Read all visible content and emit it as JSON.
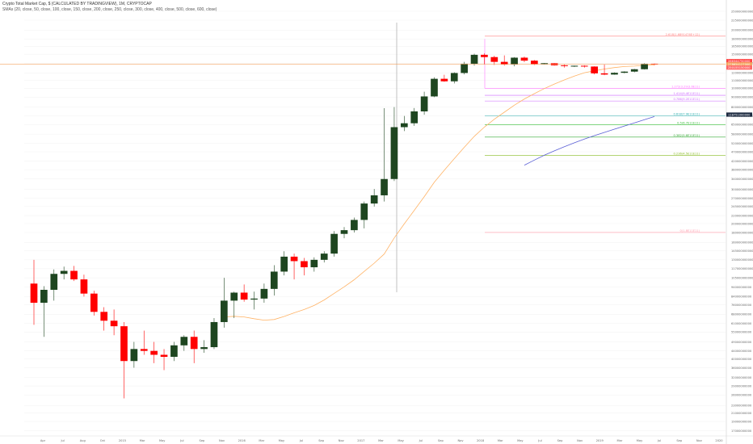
{
  "header": {
    "title": "Crypto Total Market Cap, $ (CALCULATED BY TRADINGVIEW), 1M, CRYPTOCAP",
    "indicators": "SMAs (20, close, 50, close, 100, close, 150, close, 200, close, 250, close, 300, close, 400, close, 500, close, 600, close)"
  },
  "colors": {
    "up": "#1e4620",
    "down": "#ff0000",
    "sma_orange": "#ffb366",
    "sma_blue": "#5a5fd6",
    "fib_lines": [
      "#ff8080",
      "#ff77ff",
      "#cc66ff",
      "#cc66ff",
      "#22aaaa",
      "#33bb33",
      "#33aa33",
      "#88bb22",
      "#ff99aa",
      "#ff4444"
    ],
    "price_line": "#f4a460",
    "vline": "#999999"
  },
  "chart_data": {
    "type": "candlestick",
    "y_scale": "price axis: 0 at 1,000,000,000 tick spacing ~ as printed",
    "y_ticks": [
      "2500000000000",
      "2250000000000",
      "2000000000000",
      "1800000000000",
      "1650000000000",
      "1500000000000",
      "1350000000000",
      "1200000000000",
      "1100000000000",
      "1000000000000",
      "900000000000",
      "800000000000",
      "720000000000",
      "650000000000",
      "580000000000",
      "520000000000",
      "470000000000",
      "420000000000",
      "380000000000",
      "340000000000",
      "300000000000",
      "270000000000",
      "245000000000",
      "220000000000",
      "200000000000",
      "180000000000",
      "160000000000",
      "145000000000",
      "130000000000",
      "117000000000",
      "105000000000",
      "94000000000",
      "84000000000",
      "76000000000",
      "68000000000",
      "61000000000",
      "55000000000",
      "49000000000",
      "44000000000",
      "40000000000",
      "36000000000",
      "32000000000",
      "29000000000",
      "26000000000",
      "23000000000",
      "21000000000",
      "19000000000",
      "17000000000",
      "15500000000",
      "14000000000",
      "12500000000",
      "11000000000",
      "10000000000",
      "9000000000",
      "8000000000",
      "7200000000",
      "6500000000",
      "5800000000",
      "5200000000",
      "4700000000",
      "4200000000",
      "3800000000",
      "3400000000",
      "3000000000",
      "2700000000",
      "2400000000",
      "2200000000",
      "2000000000",
      "1800000000",
      "1600000000"
    ],
    "x_labels": [
      "Apr",
      "Jul",
      "Aug",
      "Oct",
      "2015",
      "Mar",
      "May",
      "Jul",
      "Sep",
      "Nov",
      "2016",
      "Mar",
      "May",
      "Jul",
      "Sep",
      "Nov",
      "2017",
      "Mar",
      "May",
      "Jul",
      "Sep",
      "Nov",
      "2018",
      "Mar",
      "May",
      "Jul",
      "Sep",
      "Nov",
      "2019",
      "Mar",
      "May",
      "Jul",
      "Sep",
      "Nov",
      "2020"
    ],
    "candles": [
      {
        "o": 9.8,
        "h": 13.0,
        "l": 6.0,
        "c": 7.8
      },
      {
        "o": 7.8,
        "h": 9.5,
        "l": 5.2,
        "c": 9.1
      },
      {
        "o": 9.1,
        "h": 11.6,
        "l": 8.0,
        "c": 11.0
      },
      {
        "o": 11.0,
        "h": 12.0,
        "l": 10.3,
        "c": 11.4
      },
      {
        "o": 11.4,
        "h": 12.1,
        "l": 10.1,
        "c": 10.3
      },
      {
        "o": 10.3,
        "h": 10.9,
        "l": 8.4,
        "c": 8.7
      },
      {
        "o": 8.7,
        "h": 9.0,
        "l": 6.7,
        "c": 7.0
      },
      {
        "o": 7.0,
        "h": 7.4,
        "l": 5.6,
        "c": 6.3
      },
      {
        "o": 6.3,
        "h": 7.2,
        "l": 5.3,
        "c": 5.9
      },
      {
        "o": 5.9,
        "h": 6.2,
        "l": 2.5,
        "c": 3.9
      },
      {
        "o": 3.9,
        "h": 4.9,
        "l": 3.6,
        "c": 4.5
      },
      {
        "o": 4.5,
        "h": 5.6,
        "l": 4.2,
        "c": 4.4
      },
      {
        "o": 4.4,
        "h": 4.9,
        "l": 3.8,
        "c": 4.2
      },
      {
        "o": 4.2,
        "h": 4.5,
        "l": 3.5,
        "c": 4.1
      },
      {
        "o": 4.1,
        "h": 4.9,
        "l": 3.9,
        "c": 4.7
      },
      {
        "o": 4.7,
        "h": 5.3,
        "l": 4.4,
        "c": 5.2
      },
      {
        "o": 5.2,
        "h": 5.6,
        "l": 3.8,
        "c": 4.5
      },
      {
        "o": 4.5,
        "h": 5.0,
        "l": 4.3,
        "c": 4.6
      },
      {
        "o": 4.6,
        "h": 6.5,
        "l": 4.5,
        "c": 6.2
      },
      {
        "o": 6.2,
        "h": 10.5,
        "l": 5.8,
        "c": 8.0
      },
      {
        "o": 8.0,
        "h": 8.9,
        "l": 6.5,
        "c": 8.8
      },
      {
        "o": 8.8,
        "h": 9.7,
        "l": 7.9,
        "c": 8.1
      },
      {
        "o": 8.1,
        "h": 8.9,
        "l": 7.2,
        "c": 8.2
      },
      {
        "o": 8.2,
        "h": 9.8,
        "l": 7.8,
        "c": 9.2
      },
      {
        "o": 9.2,
        "h": 12.2,
        "l": 8.5,
        "c": 11.3
      },
      {
        "o": 11.3,
        "h": 14.4,
        "l": 10.8,
        "c": 13.5
      },
      {
        "o": 13.5,
        "h": 14.0,
        "l": 10.3,
        "c": 12.8
      },
      {
        "o": 12.8,
        "h": 13.3,
        "l": 10.8,
        "c": 11.9
      },
      {
        "o": 11.9,
        "h": 13.4,
        "l": 11.3,
        "c": 13.0
      },
      {
        "o": 13.0,
        "h": 14.4,
        "l": 12.6,
        "c": 14.0
      },
      {
        "o": 14.0,
        "h": 18.3,
        "l": 13.5,
        "c": 17.7
      },
      {
        "o": 17.7,
        "h": 19.2,
        "l": 16.8,
        "c": 18.5
      },
      {
        "o": 18.5,
        "h": 21.5,
        "l": 18.0,
        "c": 20.9
      },
      {
        "o": 20.9,
        "h": 26.0,
        "l": 18.9,
        "c": 25.4
      },
      {
        "o": 25.4,
        "h": 30.2,
        "l": 24.5,
        "c": 28.0
      },
      {
        "o": 28.0,
        "h": 79.0,
        "l": 26.0,
        "c": 34.0
      },
      {
        "o": 34.0,
        "h": 80.0,
        "l": 33.2,
        "c": 63.0
      },
      {
        "o": 63.0,
        "h": 72.0,
        "l": 60.1,
        "c": 66.0
      },
      {
        "o": 66.0,
        "h": 79.1,
        "l": 64.0,
        "c": 76.0
      },
      {
        "o": 76.0,
        "h": 96.0,
        "l": 73.0,
        "c": 90.8
      },
      {
        "o": 90.8,
        "h": 114.0,
        "l": 90.0,
        "c": 112.0
      },
      {
        "o": 112.0,
        "h": 117.5,
        "l": 108.0,
        "c": 108.7
      },
      {
        "o": 108.7,
        "h": 121.0,
        "l": 106.0,
        "c": 120.0
      },
      {
        "o": 120.0,
        "h": 137.0,
        "l": 118.0,
        "c": 134.0
      },
      {
        "o": 134.0,
        "h": 151.0,
        "l": 131.0,
        "c": 149.0
      },
      {
        "o": 149.0,
        "h": 151.5,
        "l": 133.0,
        "c": 145.0
      },
      {
        "o": 145.0,
        "h": 147.5,
        "l": 132.0,
        "c": 137.0
      },
      {
        "o": 137.0,
        "h": 148.0,
        "l": 131.0,
        "c": 133.0
      },
      {
        "o": 133.0,
        "h": 145.0,
        "l": 130.0,
        "c": 144.0
      },
      {
        "o": 144.0,
        "h": 146.0,
        "l": 136.5,
        "c": 139.0
      },
      {
        "o": 139.0,
        "h": 140.0,
        "l": 132.0,
        "c": 133.5
      },
      {
        "o": 133.5,
        "h": 135.2,
        "l": 132.5,
        "c": 134.8
      },
      {
        "o": 134.8,
        "h": 135.0,
        "l": 131.0,
        "c": 131.5
      },
      {
        "o": 131.5,
        "h": 133.5,
        "l": 128.0,
        "c": 130.5
      },
      {
        "o": 130.5,
        "h": 131.0,
        "l": 128.8,
        "c": 130.8
      },
      {
        "o": 130.8,
        "h": 131.5,
        "l": 128.0,
        "c": 129.6
      },
      {
        "o": 129.6,
        "h": 130.0,
        "l": 118.0,
        "c": 119.5
      },
      {
        "o": 119.5,
        "h": 133.2,
        "l": 117.0,
        "c": 117.8
      },
      {
        "o": 117.8,
        "h": 121.0,
        "l": 117.5,
        "c": 120.3
      },
      {
        "o": 120.3,
        "h": 122.5,
        "l": 119.5,
        "c": 122.0
      },
      {
        "o": 122.0,
        "h": 126.0,
        "l": 121.0,
        "c": 125.5
      },
      {
        "o": 125.5,
        "h": 134.8,
        "l": 125.0,
        "c": 134.0
      },
      {
        "o": 134.0,
        "h": 134.4,
        "l": 131.6,
        "c": 133.0
      }
    ],
    "fib_levels": [
      {
        "label": "2.618(1.6891476E+12)",
        "value": 18.6
      },
      {
        "label": "1.272(3.29(3.6E11)",
        "value": 10.0
      },
      {
        "label": "1.414(9.4E11E11)",
        "value": 9.2
      },
      {
        "label": "0.786(9.2E11E11)",
        "value": 8.6
      },
      {
        "label": "0.618(7.9E11E11)",
        "value": 7.2
      },
      {
        "label": "0.5(6.7E11E11)",
        "value": 6.5
      },
      {
        "label": "0.382(5.6E11E11)",
        "value": 5.6
      },
      {
        "label": "0.236(4.5E11E11)",
        "value": 4.5
      },
      {
        "label": "0(1.8E11E11)",
        "value": 1.8
      }
    ],
    "price_tags": [
      {
        "text": "266344750000",
        "color": "#ff4444"
      },
      {
        "text": "278654127000",
        "color": "#f4a460"
      },
      {
        "text": "250155150000",
        "color": "#ff6666"
      },
      {
        "text": "118751000000",
        "color": "#1c2a40"
      }
    ]
  }
}
